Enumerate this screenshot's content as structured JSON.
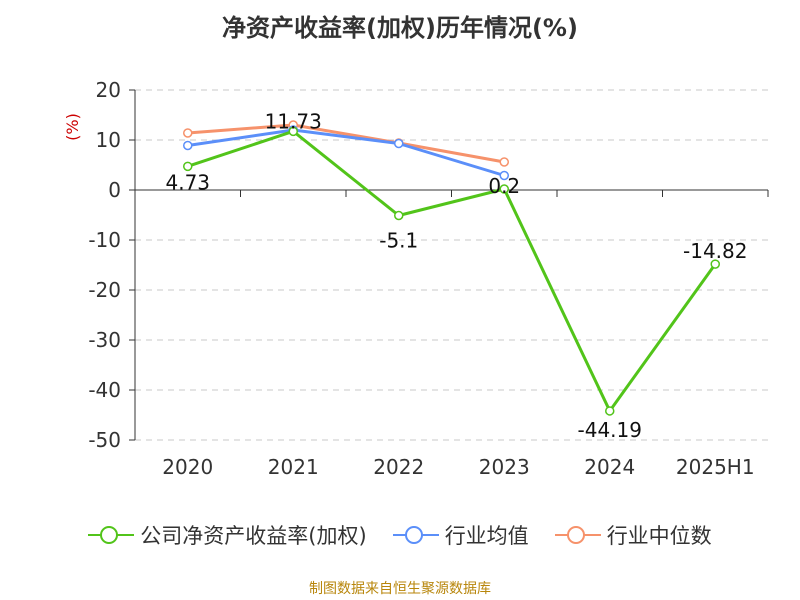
{
  "chart_data": {
    "type": "line",
    "title": "净资产收益率(加权)历年情况(%)",
    "ylabel": "(%)",
    "categories": [
      "2020",
      "2021",
      "2022",
      "2023",
      "2024",
      "2025H1"
    ],
    "ylim": [
      -50,
      20
    ],
    "yticks": [
      20,
      10,
      0,
      -10,
      -20,
      -30,
      -40,
      -50
    ],
    "grid": true,
    "legend_position": "bottom",
    "series": [
      {
        "name": "公司净资产收益率(加权)",
        "color": "#52c41a",
        "values": [
          4.73,
          11.73,
          -5.1,
          0.2,
          -44.19,
          -14.82
        ],
        "labels": [
          "4.73",
          "11.73",
          "-5.1",
          "0.2",
          "-44.19",
          "-14.82"
        ]
      },
      {
        "name": "行业均值",
        "color": "#5b8ff9",
        "values": [
          8.9,
          12.0,
          9.3,
          2.9,
          null,
          null
        ]
      },
      {
        "name": "行业中位数",
        "color": "#f6926b",
        "values": [
          11.4,
          13.0,
          9.4,
          5.6,
          null,
          null
        ]
      }
    ]
  },
  "source": "制图数据来自恒生聚源数据库"
}
